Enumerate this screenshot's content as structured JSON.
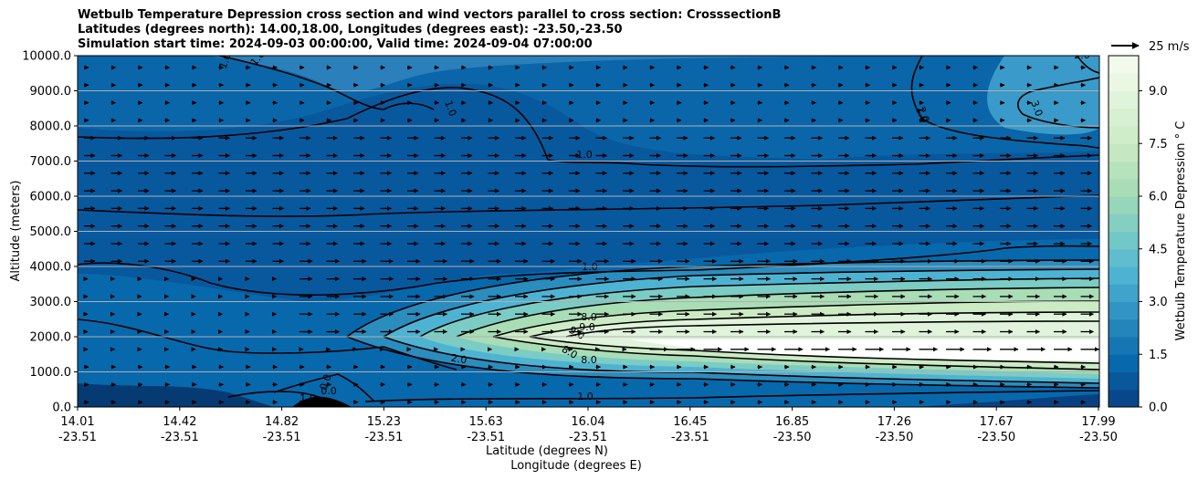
{
  "chart_data": {
    "type": "contour",
    "title_lines": [
      "Wetbulb Temperature Depression cross section and wind vectors parallel to cross section: CrosssectionB",
      "Latitudes (degrees north): 14.00,18.00, Longitudes (degrees east): -23.50,-23.50",
      "Simulation start time: 2024-09-03 00:00:00, Valid time: 2024-09-04 07:00:00"
    ],
    "ylabel": "Altitude (meters)",
    "xlabel_lat": "Latitude (degrees N)",
    "xlabel_lon": "Longitude (degrees E)",
    "ylim": [
      0,
      10000
    ],
    "yticks": [
      "0.0",
      "1000.0",
      "2000.0",
      "3000.0",
      "4000.0",
      "5000.0",
      "6000.0",
      "7000.0",
      "8000.0",
      "9000.0",
      "10000.0"
    ],
    "ytick_values": [
      0,
      1000,
      2000,
      3000,
      4000,
      5000,
      6000,
      7000,
      8000,
      9000,
      10000
    ],
    "xticks_lat": [
      "14.01",
      "14.42",
      "14.82",
      "15.23",
      "15.63",
      "16.04",
      "16.45",
      "16.85",
      "17.26",
      "17.67",
      "17.99"
    ],
    "xticks_lon": [
      "-23.51",
      "-23.51",
      "-23.51",
      "-23.51",
      "-23.51",
      "-23.51",
      "-23.51",
      "-23.50",
      "-23.50",
      "-23.50",
      "-23.50"
    ],
    "xlim": [
      14.01,
      17.99
    ],
    "colorbar": {
      "label": "Wetbulb Temperature Depression ° C",
      "ticks": [
        "0.0",
        "1.5",
        "3.0",
        "4.5",
        "6.0",
        "7.5",
        "9.0"
      ],
      "tick_values": [
        0,
        1.5,
        3.0,
        4.5,
        6.0,
        7.5,
        9.0
      ],
      "range": [
        0,
        10
      ],
      "colormap": [
        "#084081",
        "#0868ac",
        "#2b8cbe",
        "#4eb3d3",
        "#7bccc4",
        "#a8ddb5",
        "#ccebc5",
        "#e0f3db",
        "#f7fcf0"
      ]
    },
    "wind_key": {
      "label": "25 m/s",
      "speed": 25
    },
    "contour_labels": [
      "1.0",
      "1.0",
      "1.0",
      "1.0",
      "1.0",
      "1.0",
      "2.0",
      "2.0",
      "3.0",
      "2.0",
      "8.0",
      "9.0",
      "9.0",
      "8.0",
      "8.0",
      "0.0",
      "0.0",
      "1.0",
      "1.0"
    ]
  }
}
